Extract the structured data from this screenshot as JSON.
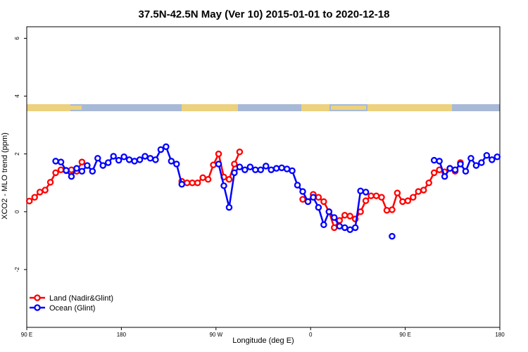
{
  "chart_data": {
    "type": "line",
    "title": "37.5N-42.5N May (Ver 10)   2015-01-01 to 2020-12-18",
    "xlabel": "Longitude (deg E)",
    "ylabel": "XCO2 - MLO trend (ppm)",
    "x": [
      92.5,
      97.5,
      102.5,
      107.5,
      112.5,
      117.5,
      122.5,
      127.5,
      132.5,
      137.5,
      142.5,
      147.5,
      152.5,
      157.5,
      162.5,
      167.5,
      172.5,
      177.5,
      182.5,
      187.5,
      192.5,
      197.5,
      202.5,
      207.5,
      212.5,
      217.5,
      222.5,
      227.5,
      232.5,
      237.5,
      242.5,
      247.5,
      252.5,
      257.5,
      262.5,
      267.5,
      272.5,
      277.5,
      282.5,
      287.5,
      292.5,
      297.5,
      302.5,
      307.5,
      312.5,
      317.5,
      322.5,
      327.5,
      332.5,
      337.5,
      342.5,
      347.5,
      352.5,
      357.5,
      362.5,
      367.5,
      372.5,
      377.5,
      382.5,
      387.5,
      392.5,
      397.5,
      402.5,
      407.5,
      412.5,
      417.5,
      422.5,
      427.5,
      432.5,
      437.5,
      442.5,
      447.5,
      452.5,
      457.5,
      462.5,
      467.5,
      472.5,
      477.5,
      482.5,
      487.5,
      492.5,
      497.5,
      502.5,
      507.5,
      512.5,
      517.5,
      522.5,
      527.5,
      532.5,
      537.5
    ],
    "series": [
      {
        "name": "Land (Nadir&Glint)",
        "color": "#ff0000",
        "values": [
          0.37,
          0.5,
          0.68,
          0.75,
          1.02,
          1.35,
          1.45,
          1.42,
          1.45,
          1.4,
          1.72,
          null,
          null,
          null,
          null,
          null,
          null,
          null,
          null,
          null,
          null,
          null,
          null,
          null,
          null,
          null,
          null,
          null,
          null,
          1.05,
          1.0,
          1.0,
          1.0,
          1.18,
          1.12,
          1.62,
          2.0,
          1.2,
          1.12,
          1.65,
          2.07,
          null,
          null,
          null,
          null,
          null,
          null,
          null,
          null,
          null,
          null,
          null,
          0.43,
          0.35,
          0.6,
          0.5,
          0.35,
          0.0,
          -0.55,
          -0.3,
          -0.12,
          -0.15,
          -0.25,
          0.0,
          0.38,
          0.55,
          0.55,
          0.5,
          0.05,
          0.07,
          0.65,
          0.35,
          0.38,
          0.5,
          0.7,
          0.75,
          1.0,
          1.35,
          1.45,
          1.38,
          1.5,
          1.4,
          1.7,
          null,
          null,
          null,
          null,
          null,
          null,
          null
        ]
      },
      {
        "name": "Ocean (Glint)",
        "color": "#0000ff",
        "values": [
          null,
          null,
          null,
          null,
          null,
          1.75,
          1.72,
          1.43,
          1.22,
          1.5,
          1.4,
          1.6,
          1.4,
          1.85,
          1.6,
          1.7,
          1.92,
          1.78,
          1.9,
          1.8,
          1.75,
          1.8,
          1.92,
          1.85,
          1.8,
          2.15,
          2.25,
          1.75,
          1.65,
          0.95,
          null,
          null,
          null,
          null,
          null,
          null,
          1.65,
          0.9,
          0.15,
          1.35,
          1.55,
          1.45,
          1.55,
          1.45,
          1.45,
          1.58,
          1.45,
          1.5,
          1.52,
          1.48,
          1.42,
          0.92,
          0.7,
          0.35,
          0.5,
          0.15,
          -0.45,
          0.0,
          -0.2,
          -0.5,
          -0.55,
          -0.62,
          -0.55,
          0.72,
          0.68,
          null,
          null,
          null,
          null,
          -0.85,
          null,
          null,
          null,
          null,
          null,
          null,
          null,
          1.78,
          1.75,
          1.22,
          1.5,
          1.45,
          1.65,
          1.4,
          1.85,
          1.6,
          1.7,
          1.95,
          1.8,
          1.9
        ]
      }
    ],
    "xlim": [
      90,
      540
    ],
    "xticks": [
      {
        "value": 90,
        "label": "90 E"
      },
      180,
      {
        "value": 270,
        "label": "90 W"
      },
      {
        "value": 360,
        "label": "0"
      },
      {
        "value": 450,
        "label": "90 E"
      },
      {
        "value": 540,
        "label": "180"
      }
    ],
    "ylim": [
      -4,
      6.4
    ],
    "yticks": [
      6,
      4,
      2,
      0,
      -2
    ],
    "legend": "bottom-left"
  }
}
